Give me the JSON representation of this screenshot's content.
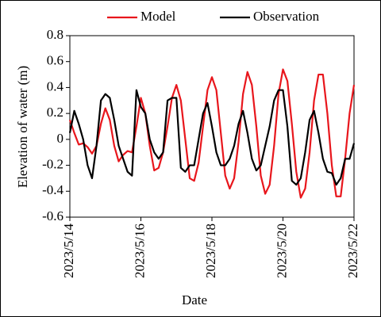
{
  "chart_data": {
    "type": "line",
    "ylabel": "Elevation of water (m)",
    "xlabel": "Date",
    "x": [
      "2023-05-14T00:00",
      "2023-05-14T03:00",
      "2023-05-14T06:00",
      "2023-05-14T09:00",
      "2023-05-14T12:00",
      "2023-05-14T15:00",
      "2023-05-14T18:00",
      "2023-05-14T21:00",
      "2023-05-15T00:00",
      "2023-05-15T03:00",
      "2023-05-15T06:00",
      "2023-05-15T09:00",
      "2023-05-15T12:00",
      "2023-05-15T15:00",
      "2023-05-15T18:00",
      "2023-05-15T21:00",
      "2023-05-16T00:00",
      "2023-05-16T03:00",
      "2023-05-16T06:00",
      "2023-05-16T09:00",
      "2023-05-16T12:00",
      "2023-05-16T15:00",
      "2023-05-16T18:00",
      "2023-05-16T21:00",
      "2023-05-17T00:00",
      "2023-05-17T03:00",
      "2023-05-17T06:00",
      "2023-05-17T09:00",
      "2023-05-17T12:00",
      "2023-05-17T15:00",
      "2023-05-17T18:00",
      "2023-05-17T21:00",
      "2023-05-18T00:00",
      "2023-05-18T03:00",
      "2023-05-18T06:00",
      "2023-05-18T09:00",
      "2023-05-18T12:00",
      "2023-05-18T15:00",
      "2023-05-18T18:00",
      "2023-05-18T21:00",
      "2023-05-19T00:00",
      "2023-05-19T03:00",
      "2023-05-19T06:00",
      "2023-05-19T09:00",
      "2023-05-19T12:00",
      "2023-05-19T15:00",
      "2023-05-19T18:00",
      "2023-05-19T21:00",
      "2023-05-20T00:00",
      "2023-05-20T03:00",
      "2023-05-20T06:00",
      "2023-05-20T09:00",
      "2023-05-20T12:00",
      "2023-05-20T15:00",
      "2023-05-20T18:00",
      "2023-05-20T21:00",
      "2023-05-21T00:00",
      "2023-05-21T03:00",
      "2023-05-21T06:00",
      "2023-05-21T09:00",
      "2023-05-21T12:00",
      "2023-05-21T15:00",
      "2023-05-21T18:00",
      "2023-05-21T21:00",
      "2023-05-22T00:00"
    ],
    "series": [
      {
        "name": "Model",
        "color": "#e8161c",
        "values": [
          0.15,
          0.05,
          -0.04,
          -0.03,
          -0.06,
          -0.11,
          -0.05,
          0.12,
          0.24,
          0.15,
          -0.05,
          -0.17,
          -0.12,
          -0.09,
          -0.1,
          0.1,
          0.32,
          0.2,
          -0.05,
          -0.24,
          -0.22,
          -0.1,
          0.1,
          0.32,
          0.42,
          0.3,
          0.0,
          -0.3,
          -0.32,
          -0.18,
          0.1,
          0.38,
          0.48,
          0.38,
          0.05,
          -0.28,
          -0.38,
          -0.3,
          -0.02,
          0.35,
          0.52,
          0.42,
          0.1,
          -0.28,
          -0.42,
          -0.35,
          -0.05,
          0.35,
          0.54,
          0.45,
          0.12,
          -0.25,
          -0.45,
          -0.38,
          -0.1,
          0.3,
          0.5,
          0.5,
          0.2,
          -0.2,
          -0.44,
          -0.44,
          -0.15,
          0.2,
          0.42
        ]
      },
      {
        "name": "Observation",
        "color": "#000000",
        "values": [
          0.05,
          0.22,
          0.12,
          0.0,
          -0.2,
          -0.3,
          -0.05,
          0.3,
          0.35,
          0.32,
          0.15,
          -0.05,
          -0.15,
          -0.25,
          -0.28,
          0.38,
          0.25,
          0.2,
          0.0,
          -0.1,
          -0.15,
          -0.1,
          0.3,
          0.32,
          0.32,
          -0.22,
          -0.25,
          -0.2,
          -0.2,
          0.0,
          0.2,
          0.28,
          0.1,
          -0.1,
          -0.2,
          -0.2,
          -0.15,
          -0.05,
          0.12,
          0.22,
          0.05,
          -0.15,
          -0.24,
          -0.2,
          -0.05,
          0.1,
          0.3,
          0.38,
          0.38,
          0.1,
          -0.32,
          -0.35,
          -0.3,
          -0.1,
          0.15,
          0.22,
          0.05,
          -0.15,
          -0.25,
          -0.26,
          -0.35,
          -0.3,
          -0.15,
          -0.15,
          -0.03
        ]
      }
    ],
    "xlim": [
      "2023-05-14T00:00",
      "2023-05-22T00:00"
    ],
    "xticks": [
      {
        "value": "2023-05-14T00:00",
        "label": "2023/5/14"
      },
      {
        "value": "2023-05-16T00:00",
        "label": "2023/5/16"
      },
      {
        "value": "2023-05-18T00:00",
        "label": "2023/5/18"
      },
      {
        "value": "2023-05-20T00:00",
        "label": "2023/5/20"
      },
      {
        "value": "2023-05-22T00:00",
        "label": "2023/5/22"
      }
    ],
    "ylim": [
      -0.6,
      0.8
    ],
    "yticks": [
      -0.6,
      -0.4,
      -0.2,
      0,
      0.2,
      0.4,
      0.6,
      0.8
    ],
    "legend": "top"
  }
}
